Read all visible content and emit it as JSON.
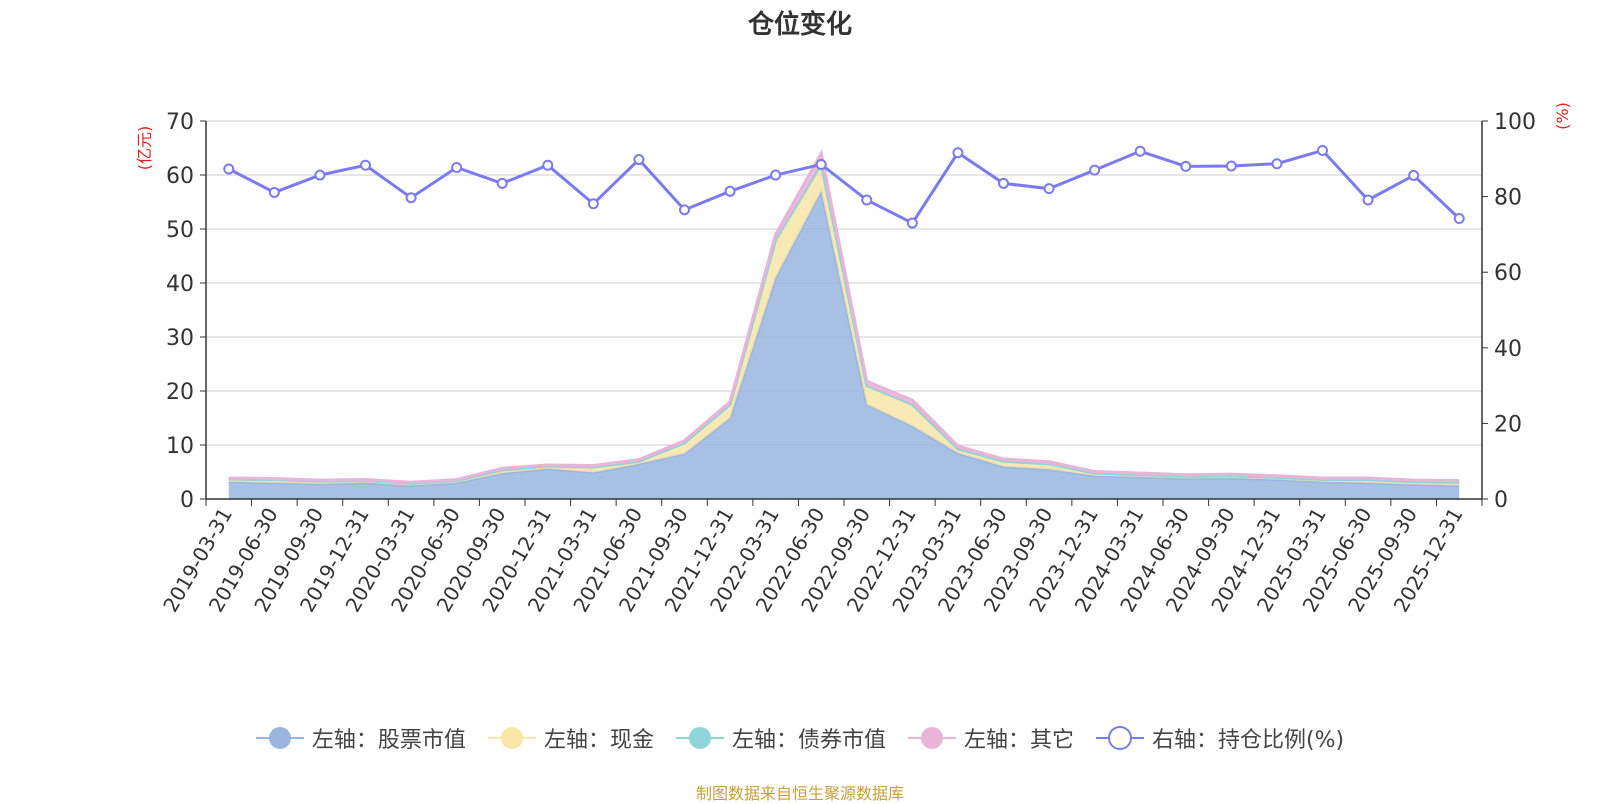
{
  "chart_data": {
    "type": "area",
    "title": "仓位变化",
    "footer": "制图数据来自恒生聚源数据库",
    "left_axis": {
      "unit": "(亿元)",
      "ylim": [
        0,
        70
      ],
      "ticks": [
        0,
        10,
        20,
        30,
        40,
        50,
        60,
        70
      ]
    },
    "right_axis": {
      "unit": "(%)",
      "ylim": [
        0,
        100
      ],
      "ticks": [
        0,
        20,
        40,
        60,
        80,
        100
      ]
    },
    "categories": [
      "2019-03-31",
      "2019-06-30",
      "2019-09-30",
      "2019-12-31",
      "2020-03-31",
      "2020-06-30",
      "2020-09-30",
      "2020-12-31",
      "2021-03-31",
      "2021-06-30",
      "2021-09-30",
      "2021-12-31",
      "2022-03-31",
      "2022-06-30",
      "2022-09-30",
      "2022-12-31",
      "2023-03-31",
      "2023-06-30",
      "2023-09-30",
      "2023-12-31",
      "2024-03-31",
      "2024-06-30",
      "2024-09-30",
      "2024-12-31",
      "2025-03-31",
      "2025-06-30",
      "2025-09-30",
      "2025-12-31"
    ],
    "series": [
      {
        "name": "左轴：股票市值",
        "axis": "left",
        "color": "#9ab5e0",
        "values": [
          3.2,
          3.0,
          2.8,
          3.0,
          2.5,
          3.0,
          4.8,
          5.6,
          4.9,
          6.5,
          8.4,
          15,
          41,
          57,
          17.5,
          13.5,
          8.5,
          6.0,
          5.5,
          4.3,
          4.1,
          3.8,
          3.9,
          3.6,
          3.2,
          3.0,
          2.7,
          2.5
        ]
      },
      {
        "name": "左轴：现金",
        "axis": "left",
        "color": "#f8e6a8",
        "values": [
          0.5,
          0.6,
          0.5,
          0.4,
          0.4,
          0.4,
          0.6,
          0.5,
          1.0,
          0.5,
          2.0,
          2.5,
          7.0,
          5.0,
          3.5,
          4.0,
          0.8,
          1.0,
          1.0,
          0.5,
          0.4,
          0.4,
          0.4,
          0.4,
          0.4,
          0.6,
          0.5,
          0.6
        ]
      },
      {
        "name": "左轴：债券市值",
        "axis": "left",
        "color": "#8fd4d6",
        "values": [
          0,
          0,
          0,
          0,
          0,
          0,
          0,
          0,
          0,
          0,
          0,
          0,
          0,
          0,
          0,
          0,
          0,
          0,
          0,
          0,
          0,
          0,
          0,
          0,
          0,
          0,
          0,
          0
        ]
      },
      {
        "name": "左轴：其它",
        "axis": "left",
        "color": "#e8b4d8",
        "values": [
          0.2,
          0.2,
          0.2,
          0.2,
          0.2,
          0.2,
          0.3,
          0.2,
          0.3,
          0.3,
          0.4,
          0.5,
          1.0,
          2.0,
          0.8,
          0.8,
          0.5,
          0.4,
          0.4,
          0.3,
          0.3,
          0.3,
          0.3,
          0.3,
          0.3,
          0.3,
          0.3,
          0.3
        ]
      },
      {
        "name": "右轴：持仓比例(%)",
        "axis": "right",
        "color": "#7b7bf0",
        "type": "line",
        "values": [
          87.3,
          81.1,
          85.7,
          88.3,
          79.7,
          87.7,
          83.5,
          88.3,
          78.1,
          89.8,
          76.5,
          81.4,
          85.7,
          88.5,
          79.1,
          73.0,
          91.6,
          83.5,
          82.1,
          87.0,
          92.0,
          88.0,
          88.1,
          88.7,
          92.2,
          79.1,
          85.6,
          74.2
        ]
      }
    ]
  }
}
